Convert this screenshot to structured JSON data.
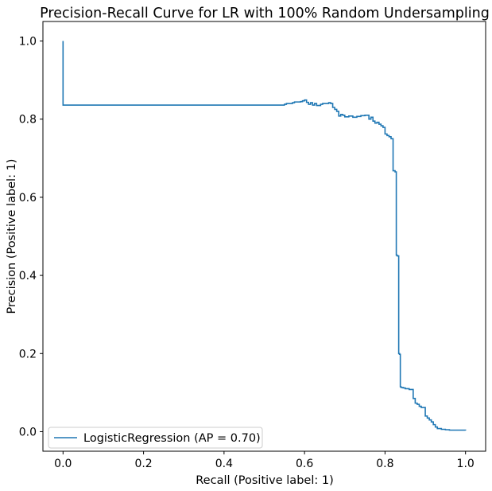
{
  "chart_data": {
    "type": "line",
    "title": "Precision-Recall Curve for LR with 100% Random Undersampling",
    "xlabel": "Recall (Positive label: 1)",
    "ylabel": "Precision (Positive label: 1)",
    "xlim": [
      -0.05,
      1.05
    ],
    "ylim": [
      -0.05,
      1.05
    ],
    "xticks": [
      "0.0",
      "0.2",
      "0.4",
      "0.6",
      "0.8",
      "1.0"
    ],
    "yticks": [
      "0.0",
      "0.2",
      "0.4",
      "0.6",
      "0.8",
      "1.0"
    ],
    "grid": false,
    "legend_placement": "lower-left",
    "series": [
      {
        "name": "LogisticRegression (AP = 0.70)",
        "color": "#1f77b4",
        "drawstyle": "steps-post",
        "x": [
          0.0,
          0.0,
          0.0,
          0.545,
          0.55,
          0.555,
          0.57,
          0.575,
          0.59,
          0.595,
          0.6,
          0.605,
          0.61,
          0.615,
          0.62,
          0.625,
          0.63,
          0.64,
          0.645,
          0.66,
          0.665,
          0.67,
          0.675,
          0.68,
          0.685,
          0.69,
          0.695,
          0.7,
          0.71,
          0.72,
          0.73,
          0.74,
          0.75,
          0.76,
          0.765,
          0.77,
          0.775,
          0.78,
          0.785,
          0.79,
          0.795,
          0.8,
          0.805,
          0.81,
          0.815,
          0.82,
          0.825,
          0.828,
          0.83,
          0.834,
          0.836,
          0.838,
          0.84,
          0.845,
          0.85,
          0.86,
          0.87,
          0.875,
          0.88,
          0.885,
          0.89,
          0.9,
          0.905,
          0.91,
          0.915,
          0.92,
          0.925,
          0.93,
          0.94,
          0.95,
          0.96,
          1.0
        ],
        "y": [
          1.0,
          0.836,
          0.836,
          0.836,
          0.838,
          0.84,
          0.842,
          0.844,
          0.845,
          0.847,
          0.849,
          0.843,
          0.838,
          0.842,
          0.836,
          0.84,
          0.835,
          0.838,
          0.84,
          0.842,
          0.84,
          0.83,
          0.825,
          0.82,
          0.808,
          0.812,
          0.81,
          0.806,
          0.808,
          0.805,
          0.807,
          0.809,
          0.81,
          0.8,
          0.805,
          0.795,
          0.79,
          0.792,
          0.787,
          0.783,
          0.779,
          0.762,
          0.758,
          0.755,
          0.75,
          0.668,
          0.665,
          0.452,
          0.45,
          0.2,
          0.198,
          0.115,
          0.113,
          0.112,
          0.11,
          0.108,
          0.085,
          0.073,
          0.07,
          0.065,
          0.062,
          0.04,
          0.035,
          0.03,
          0.025,
          0.018,
          0.012,
          0.008,
          0.006,
          0.005,
          0.004,
          0.003
        ]
      }
    ]
  }
}
